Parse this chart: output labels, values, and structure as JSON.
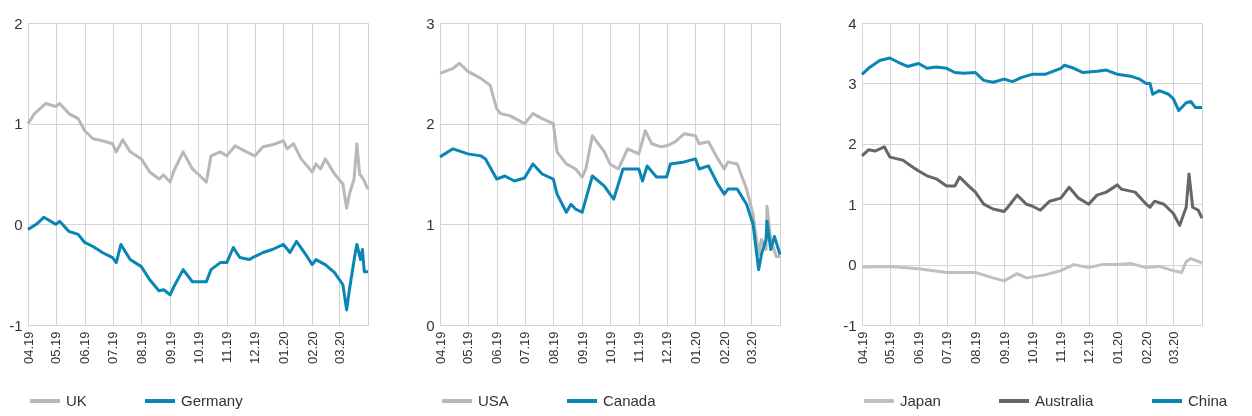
{
  "chart_data": [
    {
      "type": "line",
      "xlim": [
        "2019-04-01",
        "2020-04-01"
      ],
      "xticks": [
        {
          "value": "2019-04-01",
          "label": "04.19"
        },
        {
          "value": "2019-05-01",
          "label": "05.19"
        },
        {
          "value": "2019-06-01",
          "label": "06.19"
        },
        {
          "value": "2019-07-01",
          "label": "07.19"
        },
        {
          "value": "2019-08-01",
          "label": "08.19"
        },
        {
          "value": "2019-09-01",
          "label": "09.19"
        },
        {
          "value": "2019-10-01",
          "label": "10.19"
        },
        {
          "value": "2019-11-01",
          "label": "11.19"
        },
        {
          "value": "2019-12-01",
          "label": "12.19"
        },
        {
          "value": "2020-01-01",
          "label": "01.20"
        },
        {
          "value": "2020-02-01",
          "label": "02.20"
        },
        {
          "value": "2020-03-01",
          "label": "03.20"
        }
      ],
      "ylim": [
        -1,
        2
      ],
      "yticks": [
        -1,
        0,
        1,
        2
      ],
      "grid": true,
      "legend": "bottom",
      "series": [
        {
          "name": "UK",
          "color": "#b8b8b8",
          "x": [
            "2019-04-01",
            "2019-04-08",
            "2019-04-20",
            "2019-05-01",
            "2019-05-05",
            "2019-05-15",
            "2019-05-25",
            "2019-06-01",
            "2019-06-10",
            "2019-06-20",
            "2019-07-01",
            "2019-07-05",
            "2019-07-12",
            "2019-07-20",
            "2019-08-01",
            "2019-08-10",
            "2019-08-20",
            "2019-08-25",
            "2019-09-01",
            "2019-09-05",
            "2019-09-15",
            "2019-09-25",
            "2019-10-01",
            "2019-10-10",
            "2019-10-15",
            "2019-10-25",
            "2019-11-01",
            "2019-11-10",
            "2019-11-20",
            "2019-12-01",
            "2019-12-10",
            "2019-12-20",
            "2020-01-01",
            "2020-01-05",
            "2020-01-12",
            "2020-01-20",
            "2020-02-01",
            "2020-02-05",
            "2020-02-10",
            "2020-02-15",
            "2020-02-25",
            "2020-03-05",
            "2020-03-09",
            "2020-03-12",
            "2020-03-17",
            "2020-03-20",
            "2020-03-23",
            "2020-03-27",
            "2020-04-01"
          ],
          "values": [
            1.0,
            1.1,
            1.2,
            1.17,
            1.2,
            1.1,
            1.05,
            0.93,
            0.85,
            0.83,
            0.8,
            0.72,
            0.84,
            0.72,
            0.65,
            0.52,
            0.45,
            0.49,
            0.42,
            0.53,
            0.72,
            0.55,
            0.5,
            0.42,
            0.68,
            0.72,
            0.68,
            0.78,
            0.73,
            0.68,
            0.77,
            0.79,
            0.83,
            0.75,
            0.8,
            0.65,
            0.52,
            0.6,
            0.55,
            0.65,
            0.5,
            0.4,
            0.16,
            0.3,
            0.45,
            0.8,
            0.5,
            0.45,
            0.35
          ]
        },
        {
          "name": "Germany",
          "color": "#0a86b4",
          "x": [
            "2019-04-01",
            "2019-04-10",
            "2019-04-18",
            "2019-05-01",
            "2019-05-05",
            "2019-05-15",
            "2019-05-25",
            "2019-06-01",
            "2019-06-10",
            "2019-06-20",
            "2019-07-01",
            "2019-07-05",
            "2019-07-10",
            "2019-07-20",
            "2019-08-01",
            "2019-08-10",
            "2019-08-20",
            "2019-08-25",
            "2019-09-01",
            "2019-09-05",
            "2019-09-15",
            "2019-09-25",
            "2019-10-10",
            "2019-10-15",
            "2019-10-25",
            "2019-11-01",
            "2019-11-08",
            "2019-11-15",
            "2019-11-25",
            "2019-12-01",
            "2019-12-10",
            "2019-12-20",
            "2020-01-01",
            "2020-01-08",
            "2020-01-15",
            "2020-01-25",
            "2020-02-01",
            "2020-02-05",
            "2020-02-15",
            "2020-02-25",
            "2020-03-05",
            "2020-03-09",
            "2020-03-12",
            "2020-03-18",
            "2020-03-20",
            "2020-03-24",
            "2020-03-26",
            "2020-03-28",
            "2020-04-01"
          ],
          "values": [
            -0.05,
            0.0,
            0.07,
            0.0,
            0.03,
            -0.07,
            -0.1,
            -0.18,
            -0.22,
            -0.28,
            -0.33,
            -0.38,
            -0.2,
            -0.35,
            -0.42,
            -0.55,
            -0.66,
            -0.65,
            -0.7,
            -0.62,
            -0.45,
            -0.57,
            -0.57,
            -0.45,
            -0.38,
            -0.38,
            -0.23,
            -0.33,
            -0.35,
            -0.32,
            -0.28,
            -0.25,
            -0.2,
            -0.28,
            -0.17,
            -0.3,
            -0.4,
            -0.35,
            -0.4,
            -0.48,
            -0.6,
            -0.85,
            -0.65,
            -0.3,
            -0.2,
            -0.35,
            -0.25,
            -0.47,
            -0.47
          ]
        }
      ]
    },
    {
      "type": "line",
      "xlim": [
        "2019-04-01",
        "2020-04-01"
      ],
      "xticks": [
        {
          "value": "2019-04-01",
          "label": "04.19"
        },
        {
          "value": "2019-05-01",
          "label": "05.19"
        },
        {
          "value": "2019-06-01",
          "label": "06.19"
        },
        {
          "value": "2019-07-01",
          "label": "07.19"
        },
        {
          "value": "2019-08-01",
          "label": "08.19"
        },
        {
          "value": "2019-09-01",
          "label": "09.19"
        },
        {
          "value": "2019-10-01",
          "label": "10.19"
        },
        {
          "value": "2019-11-01",
          "label": "11.19"
        },
        {
          "value": "2019-12-01",
          "label": "12.19"
        },
        {
          "value": "2020-01-01",
          "label": "01.20"
        },
        {
          "value": "2020-02-01",
          "label": "02.20"
        },
        {
          "value": "2020-03-01",
          "label": "03.20"
        }
      ],
      "ylim": [
        0,
        3
      ],
      "yticks": [
        0,
        1,
        2,
        3
      ],
      "grid": true,
      "legend": "bottom",
      "series": [
        {
          "name": "USA",
          "color": "#b8b8b8",
          "x": [
            "2019-04-01",
            "2019-04-15",
            "2019-04-22",
            "2019-05-01",
            "2019-05-15",
            "2019-05-25",
            "2019-06-01",
            "2019-06-05",
            "2019-06-15",
            "2019-07-01",
            "2019-07-10",
            "2019-07-20",
            "2019-08-01",
            "2019-08-05",
            "2019-08-15",
            "2019-08-25",
            "2019-09-01",
            "2019-09-05",
            "2019-09-12",
            "2019-09-25",
            "2019-10-01",
            "2019-10-10",
            "2019-10-20",
            "2019-11-01",
            "2019-11-08",
            "2019-11-15",
            "2019-11-25",
            "2019-12-01",
            "2019-12-10",
            "2019-12-20",
            "2020-01-01",
            "2020-01-05",
            "2020-01-15",
            "2020-01-25",
            "2020-02-01",
            "2020-02-05",
            "2020-02-15",
            "2020-02-25",
            "2020-03-03",
            "2020-03-09",
            "2020-03-12",
            "2020-03-17",
            "2020-03-18",
            "2020-03-22",
            "2020-03-28",
            "2020-04-01"
          ],
          "values": [
            2.5,
            2.55,
            2.6,
            2.52,
            2.45,
            2.38,
            2.15,
            2.1,
            2.08,
            2.0,
            2.1,
            2.05,
            2.0,
            1.72,
            1.6,
            1.55,
            1.47,
            1.55,
            1.88,
            1.72,
            1.6,
            1.55,
            1.75,
            1.7,
            1.93,
            1.8,
            1.77,
            1.78,
            1.82,
            1.9,
            1.88,
            1.8,
            1.82,
            1.65,
            1.55,
            1.62,
            1.6,
            1.35,
            1.1,
            0.7,
            0.85,
            0.75,
            1.18,
            0.85,
            0.68,
            0.68
          ]
        },
        {
          "name": "Canada",
          "color": "#0a86b4",
          "x": [
            "2019-04-01",
            "2019-04-15",
            "2019-05-01",
            "2019-05-15",
            "2019-05-20",
            "2019-06-01",
            "2019-06-10",
            "2019-06-20",
            "2019-07-01",
            "2019-07-10",
            "2019-07-20",
            "2019-08-01",
            "2019-08-05",
            "2019-08-15",
            "2019-08-20",
            "2019-08-25",
            "2019-09-01",
            "2019-09-05",
            "2019-09-12",
            "2019-09-25",
            "2019-10-01",
            "2019-10-05",
            "2019-10-15",
            "2019-11-01",
            "2019-11-05",
            "2019-11-10",
            "2019-11-20",
            "2019-12-01",
            "2019-12-05",
            "2019-12-20",
            "2020-01-01",
            "2020-01-05",
            "2020-01-15",
            "2020-01-25",
            "2020-02-01",
            "2020-02-05",
            "2020-02-15",
            "2020-02-25",
            "2020-03-03",
            "2020-03-09",
            "2020-03-12",
            "2020-03-17",
            "2020-03-18",
            "2020-03-22",
            "2020-03-26",
            "2020-04-01"
          ],
          "values": [
            1.67,
            1.75,
            1.7,
            1.68,
            1.65,
            1.45,
            1.48,
            1.43,
            1.46,
            1.6,
            1.5,
            1.45,
            1.3,
            1.12,
            1.2,
            1.15,
            1.12,
            1.25,
            1.48,
            1.38,
            1.3,
            1.25,
            1.55,
            1.55,
            1.43,
            1.58,
            1.47,
            1.47,
            1.6,
            1.62,
            1.65,
            1.55,
            1.58,
            1.4,
            1.3,
            1.35,
            1.35,
            1.2,
            1.0,
            0.55,
            0.7,
            0.85,
            1.03,
            0.75,
            0.88,
            0.7
          ]
        }
      ]
    },
    {
      "type": "line",
      "xlim": [
        "2019-04-01",
        "2020-04-01"
      ],
      "xticks": [
        {
          "value": "2019-04-01",
          "label": "04.19"
        },
        {
          "value": "2019-05-01",
          "label": "05.19"
        },
        {
          "value": "2019-06-01",
          "label": "06.19"
        },
        {
          "value": "2019-07-01",
          "label": "07.19"
        },
        {
          "value": "2019-08-01",
          "label": "08.19"
        },
        {
          "value": "2019-09-01",
          "label": "09.19"
        },
        {
          "value": "2019-10-01",
          "label": "10.19"
        },
        {
          "value": "2019-11-01",
          "label": "11.19"
        },
        {
          "value": "2019-12-01",
          "label": "12.19"
        },
        {
          "value": "2020-01-01",
          "label": "01.20"
        },
        {
          "value": "2020-02-01",
          "label": "02.20"
        },
        {
          "value": "2020-03-01",
          "label": "03.20"
        }
      ],
      "ylim": [
        -1,
        4
      ],
      "yticks": [
        -1,
        0,
        1,
        2,
        3,
        4
      ],
      "grid": true,
      "legend": "bottom",
      "series": [
        {
          "name": "Japan",
          "color": "#c0c0c0",
          "x": [
            "2019-04-01",
            "2019-05-01",
            "2019-06-01",
            "2019-07-01",
            "2019-08-01",
            "2019-08-20",
            "2019-09-01",
            "2019-09-15",
            "2019-09-25",
            "2019-10-15",
            "2019-11-01",
            "2019-11-15",
            "2019-12-01",
            "2019-12-15",
            "2020-01-01",
            "2020-01-15",
            "2020-02-01",
            "2020-02-15",
            "2020-03-01",
            "2020-03-10",
            "2020-03-15",
            "2020-03-20",
            "2020-04-01"
          ],
          "values": [
            -0.04,
            -0.03,
            -0.07,
            -0.13,
            -0.13,
            -0.22,
            -0.27,
            -0.15,
            -0.22,
            -0.17,
            -0.1,
            0.0,
            -0.05,
            0.0,
            0.0,
            0.02,
            -0.05,
            -0.03,
            -0.1,
            -0.13,
            0.05,
            0.1,
            0.03
          ]
        },
        {
          "name": "Australia",
          "color": "#666666",
          "x": [
            "2019-04-01",
            "2019-04-08",
            "2019-04-15",
            "2019-04-25",
            "2019-05-01",
            "2019-05-15",
            "2019-05-25",
            "2019-06-01",
            "2019-06-10",
            "2019-06-20",
            "2019-07-01",
            "2019-07-10",
            "2019-07-15",
            "2019-07-25",
            "2019-08-01",
            "2019-08-10",
            "2019-08-20",
            "2019-09-01",
            "2019-09-05",
            "2019-09-15",
            "2019-09-25",
            "2019-10-01",
            "2019-10-10",
            "2019-10-20",
            "2019-11-01",
            "2019-11-10",
            "2019-11-20",
            "2019-12-01",
            "2019-12-10",
            "2019-12-20",
            "2020-01-01",
            "2020-01-05",
            "2020-01-20",
            "2020-02-01",
            "2020-02-05",
            "2020-02-10",
            "2020-02-20",
            "2020-03-01",
            "2020-03-08",
            "2020-03-15",
            "2020-03-18",
            "2020-03-22",
            "2020-03-28",
            "2020-04-01"
          ],
          "values": [
            1.8,
            1.9,
            1.88,
            1.95,
            1.78,
            1.73,
            1.62,
            1.55,
            1.47,
            1.42,
            1.3,
            1.3,
            1.45,
            1.3,
            1.2,
            1.0,
            0.92,
            0.88,
            0.95,
            1.15,
            1.0,
            0.97,
            0.9,
            1.05,
            1.1,
            1.28,
            1.1,
            1.0,
            1.15,
            1.2,
            1.32,
            1.25,
            1.2,
            1.0,
            0.95,
            1.05,
            1.0,
            0.85,
            0.65,
            0.95,
            1.5,
            0.95,
            0.9,
            0.77
          ]
        },
        {
          "name": "China",
          "color": "#0a86b4",
          "x": [
            "2019-04-01",
            "2019-04-08",
            "2019-04-20",
            "2019-05-01",
            "2019-05-10",
            "2019-05-20",
            "2019-06-01",
            "2019-06-10",
            "2019-06-20",
            "2019-07-01",
            "2019-07-10",
            "2019-07-20",
            "2019-08-01",
            "2019-08-10",
            "2019-08-20",
            "2019-09-01",
            "2019-09-10",
            "2019-09-20",
            "2019-10-01",
            "2019-10-15",
            "2019-11-01",
            "2019-11-05",
            "2019-11-15",
            "2019-11-25",
            "2019-12-10",
            "2019-12-20",
            "2020-01-01",
            "2020-01-15",
            "2020-01-25",
            "2020-02-01",
            "2020-02-05",
            "2020-02-08",
            "2020-02-15",
            "2020-02-25",
            "2020-03-01",
            "2020-03-07",
            "2020-03-15",
            "2020-03-20",
            "2020-03-25",
            "2020-04-01"
          ],
          "values": [
            3.15,
            3.25,
            3.38,
            3.42,
            3.35,
            3.28,
            3.33,
            3.25,
            3.27,
            3.25,
            3.18,
            3.17,
            3.18,
            3.05,
            3.02,
            3.07,
            3.03,
            3.1,
            3.15,
            3.15,
            3.25,
            3.3,
            3.25,
            3.18,
            3.2,
            3.22,
            3.15,
            3.12,
            3.07,
            3.0,
            3.0,
            2.82,
            2.88,
            2.82,
            2.75,
            2.55,
            2.68,
            2.7,
            2.6,
            2.6
          ]
        }
      ]
    }
  ]
}
